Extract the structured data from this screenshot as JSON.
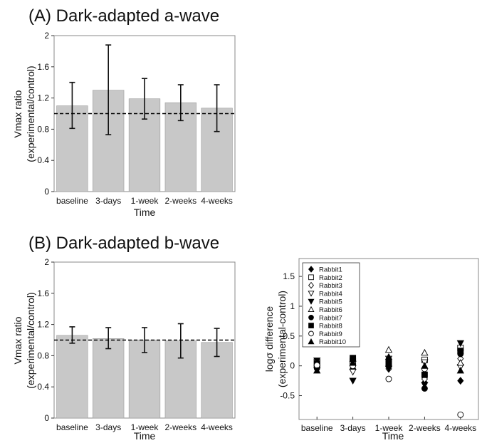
{
  "chart_data": [
    {
      "id": "panel-a",
      "type": "bar",
      "title": "(A) Dark-adapted a-wave",
      "xlabel": "Time",
      "ylabel": "Vmax ratio (experimental/control)",
      "ylabel_lines": [
        "Vmax ratio",
        "(experimental/control)"
      ],
      "categories": [
        "baseline",
        "3-days",
        "1-week",
        "2-weeks",
        "4-weeks"
      ],
      "values": [
        1.1,
        1.3,
        1.19,
        1.14,
        1.07
      ],
      "error_low": [
        0.81,
        0.73,
        0.93,
        0.91,
        0.77
      ],
      "error_high": [
        1.4,
        1.88,
        1.45,
        1.37,
        1.37
      ],
      "reference_line": 1.0,
      "ylim": [
        0,
        2
      ],
      "yticks": [
        "0",
        "0.4",
        "0.8",
        "1.2",
        "1.6",
        "2"
      ],
      "colors": {
        "bar": "#c8c8c8",
        "bar_edge": "#9a9a9a"
      }
    },
    {
      "id": "panel-b",
      "type": "bar",
      "title": "(B) Dark-adapted b-wave",
      "xlabel": "Time",
      "ylabel": "Vmax ratio (experimental/control)",
      "ylabel_lines": [
        "Vmax ratio",
        "(experimental/control)"
      ],
      "categories": [
        "baseline",
        "3-days",
        "1-week",
        "2-weeks",
        "4-weeks"
      ],
      "values": [
        1.06,
        1.02,
        1.0,
        0.99,
        0.97
      ],
      "error_low": [
        0.96,
        0.89,
        0.84,
        0.77,
        0.79
      ],
      "error_high": [
        1.17,
        1.16,
        1.16,
        1.21,
        1.15
      ],
      "reference_line": 1.0,
      "ylim": [
        0,
        2
      ],
      "yticks": [
        "0",
        "0.4",
        "0.8",
        "1.2",
        "1.6",
        "2"
      ],
      "colors": {
        "bar": "#c8c8c8",
        "bar_edge": "#9a9a9a"
      }
    },
    {
      "id": "panel-c",
      "type": "scatter",
      "xlabel": "Time",
      "ylabel": "logσ difference (experimental-control)",
      "ylabel_lines": [
        "logσ difference",
        "(experimental-control)"
      ],
      "categories": [
        "baseline",
        "3-days",
        "1-week",
        "2-weeks",
        "4-weeks"
      ],
      "ylim": [
        -0.9,
        1.8
      ],
      "yticks": [
        "-0.5",
        "0",
        "0.5",
        "1",
        "1.5"
      ],
      "legend_position": "top-left",
      "series": [
        {
          "name": "Rabbit1",
          "marker": "diamond-filled",
          "values": [
            0.0,
            -0.05,
            0.08,
            -0.28,
            -0.25
          ]
        },
        {
          "name": "Rabbit2",
          "marker": "square-open",
          "values": [
            0.05,
            0.08,
            0.03,
            0.1,
            0.3
          ]
        },
        {
          "name": "Rabbit3",
          "marker": "diamond-open",
          "values": [
            -0.02,
            0.02,
            -0.05,
            -0.22,
            0.12
          ]
        },
        {
          "name": "Rabbit4",
          "marker": "triangle-down-open",
          "values": [
            0.06,
            -0.1,
            0.12,
            0.06,
            -0.02
          ]
        },
        {
          "name": "Rabbit5",
          "marker": "triangle-down-filled",
          "values": [
            0.09,
            -0.25,
            -0.05,
            -0.32,
            0.38
          ]
        },
        {
          "name": "Rabbit6",
          "marker": "triangle-up-open",
          "values": [
            0.02,
            0.12,
            0.27,
            0.22,
            0.05
          ]
        },
        {
          "name": "Rabbit7",
          "marker": "circle-filled",
          "values": [
            -0.04,
            0.1,
            0.0,
            -0.38,
            0.2
          ]
        },
        {
          "name": "Rabbit8",
          "marker": "square-filled",
          "values": [
            0.03,
            0.13,
            0.05,
            -0.15,
            0.25
          ]
        },
        {
          "name": "Rabbit9",
          "marker": "circle-open",
          "values": [
            0.01,
            0.0,
            -0.22,
            -0.05,
            -0.82
          ]
        },
        {
          "name": "Rabbit10",
          "marker": "triangle-up-filled",
          "values": [
            -0.08,
            0.05,
            0.15,
            0.0,
            -0.08
          ]
        }
      ]
    }
  ]
}
